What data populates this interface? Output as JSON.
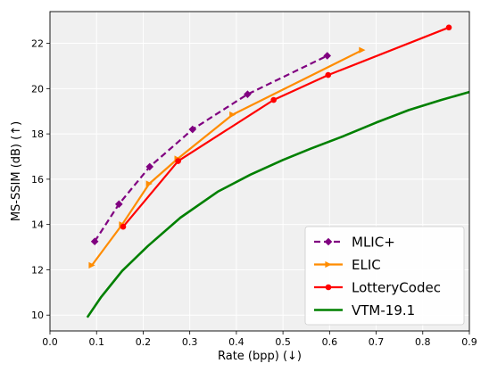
{
  "chart_data": {
    "type": "line",
    "title": "",
    "xlabel": "Rate (bpp) (↓)",
    "ylabel": "MS-SSIM (dB) (↑)",
    "xlim": [
      0.0,
      0.9
    ],
    "ylim": [
      9.3,
      23.4
    ],
    "xticks": [
      "0.0",
      "0.1",
      "0.2",
      "0.3",
      "0.4",
      "0.5",
      "0.6",
      "0.7",
      "0.8",
      "0.9"
    ],
    "yticks": [
      "10",
      "12",
      "14",
      "16",
      "18",
      "20",
      "22"
    ],
    "grid": true,
    "legend_position": "bottom-right",
    "colors": {
      "background": "#f0f0f0",
      "grid": "#ffffff"
    },
    "series": [
      {
        "name": "MLIC+",
        "color": "#800080",
        "dashed": true,
        "marker": "diamond",
        "x": [
          0.096,
          0.148,
          0.214,
          0.306,
          0.424,
          0.595
        ],
        "y": [
          13.25,
          14.9,
          16.55,
          18.2,
          19.75,
          21.45
        ]
      },
      {
        "name": "ELIC",
        "color": "#ff8c00",
        "dashed": false,
        "marker": "triangle-right",
        "x": [
          0.09,
          0.155,
          0.213,
          0.274,
          0.392,
          0.67
        ],
        "y": [
          12.2,
          14.0,
          15.8,
          16.9,
          18.85,
          21.7
        ]
      },
      {
        "name": "LotteryCodec",
        "color": "#ff0000",
        "dashed": false,
        "marker": "circle",
        "x": [
          0.157,
          0.275,
          0.48,
          0.597,
          0.856
        ],
        "y": [
          13.9,
          16.8,
          19.5,
          20.6,
          22.7
        ]
      },
      {
        "name": "VTM-19.1",
        "color": "#008000",
        "dashed": false,
        "marker": "none",
        "x": [
          0.08,
          0.11,
          0.155,
          0.21,
          0.28,
          0.36,
          0.43,
          0.5,
          0.56,
          0.63,
          0.7,
          0.77,
          0.84,
          0.9
        ],
        "y": [
          9.9,
          10.8,
          11.95,
          13.05,
          14.3,
          15.45,
          16.2,
          16.85,
          17.35,
          17.9,
          18.5,
          19.05,
          19.5,
          19.85
        ]
      }
    ]
  }
}
